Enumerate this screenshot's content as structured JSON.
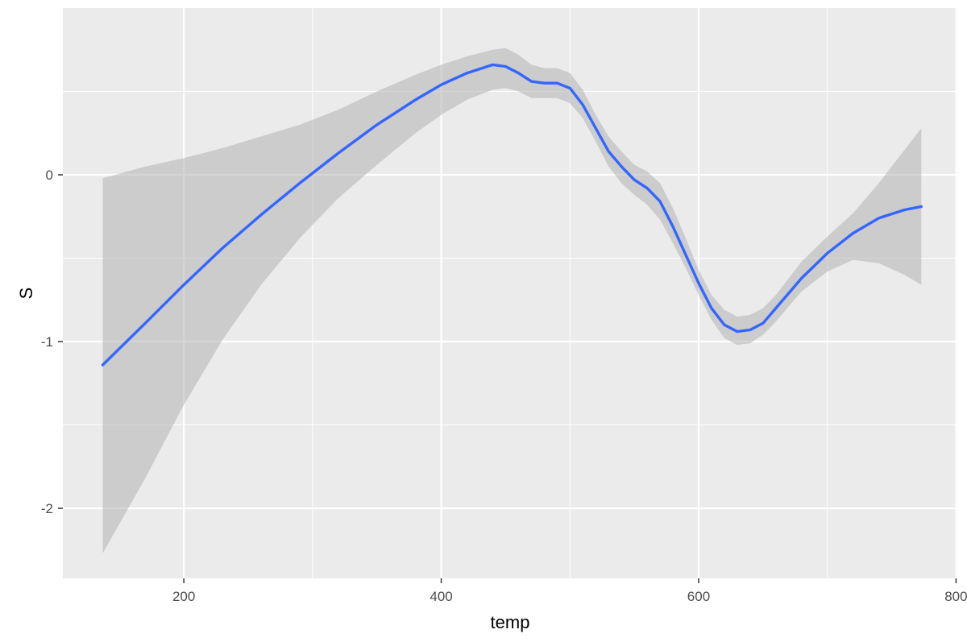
{
  "chart_data": {
    "type": "line",
    "title": "",
    "xlabel": "temp",
    "ylabel": "S",
    "xlim": [
      106,
      801
    ],
    "ylim": [
      -2.42,
      1.0
    ],
    "x_ticks": [
      200,
      400,
      600,
      800
    ],
    "x_tick_labels": [
      "200",
      "400",
      "600",
      "800"
    ],
    "y_ticks": [
      0,
      -1,
      -2
    ],
    "y_tick_labels": [
      "0",
      "-1",
      "-2"
    ],
    "grid": true,
    "legend": "none",
    "colors": {
      "panel": "#ebebeb",
      "grid_major": "#ffffff",
      "line": "#3366ff",
      "band": "#b3b3b3"
    },
    "series": [
      {
        "x": [
          137,
          170,
          200,
          230,
          260,
          290,
          320,
          350,
          380,
          400,
          420,
          440,
          450,
          460,
          470,
          480,
          490,
          500,
          510,
          520,
          530,
          540,
          550,
          560,
          570,
          580,
          590,
          600,
          610,
          620,
          630,
          640,
          650,
          660,
          680,
          700,
          720,
          740,
          760,
          773
        ],
        "y": [
          -1.14,
          -0.89,
          -0.66,
          -0.44,
          -0.24,
          -0.05,
          0.13,
          0.3,
          0.45,
          0.54,
          0.61,
          0.66,
          0.65,
          0.61,
          0.56,
          0.55,
          0.55,
          0.52,
          0.42,
          0.28,
          0.14,
          0.05,
          -0.03,
          -0.08,
          -0.16,
          -0.31,
          -0.48,
          -0.65,
          -0.8,
          -0.9,
          -0.94,
          -0.93,
          -0.89,
          -0.8,
          -0.62,
          -0.47,
          -0.35,
          -0.26,
          -0.21,
          -0.19
        ],
        "ymin": [
          -2.27,
          -1.82,
          -1.38,
          -0.99,
          -0.66,
          -0.38,
          -0.14,
          0.06,
          0.25,
          0.36,
          0.45,
          0.51,
          0.52,
          0.5,
          0.46,
          0.46,
          0.46,
          0.43,
          0.34,
          0.2,
          0.05,
          -0.05,
          -0.12,
          -0.18,
          -0.27,
          -0.41,
          -0.56,
          -0.72,
          -0.87,
          -0.98,
          -1.02,
          -1.01,
          -0.96,
          -0.88,
          -0.7,
          -0.58,
          -0.51,
          -0.53,
          -0.6,
          -0.66
        ],
        "ymax": [
          -0.02,
          0.05,
          0.1,
          0.16,
          0.23,
          0.3,
          0.39,
          0.5,
          0.6,
          0.66,
          0.71,
          0.75,
          0.76,
          0.72,
          0.66,
          0.64,
          0.64,
          0.61,
          0.51,
          0.36,
          0.23,
          0.14,
          0.06,
          0.02,
          -0.05,
          -0.2,
          -0.38,
          -0.57,
          -0.72,
          -0.81,
          -0.85,
          -0.84,
          -0.8,
          -0.72,
          -0.52,
          -0.37,
          -0.23,
          -0.05,
          0.15,
          0.28
        ]
      }
    ]
  }
}
